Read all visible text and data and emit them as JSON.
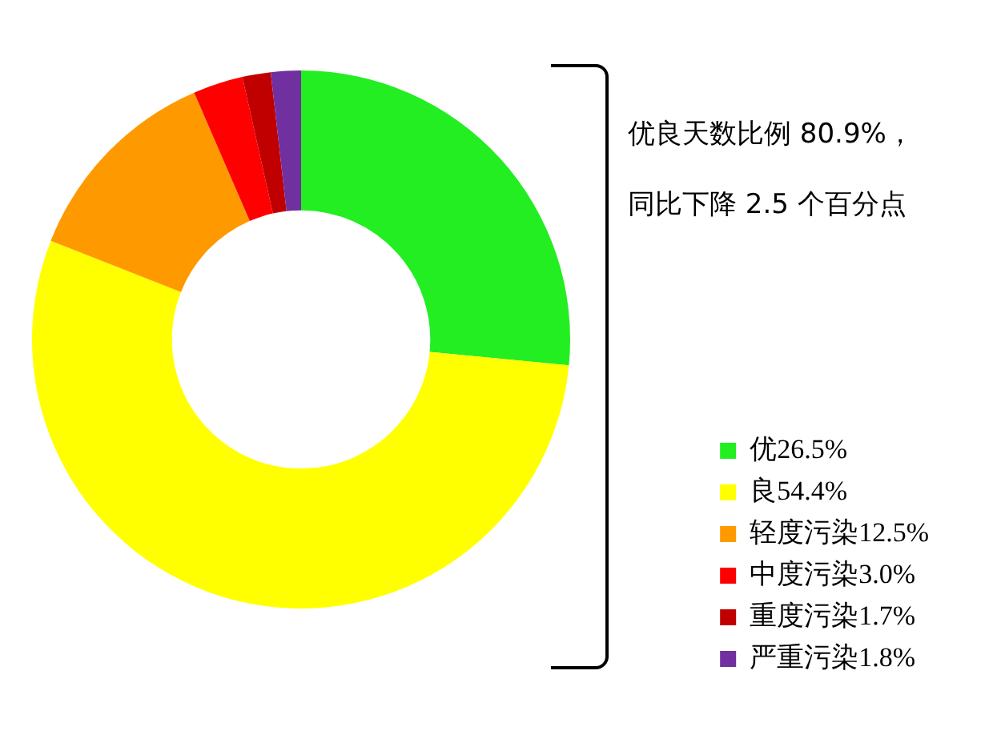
{
  "chart_data": {
    "type": "donut",
    "categories": [
      "优26.5%",
      "良54.4%",
      "轻度污染12.5%",
      "中度污染3.0%",
      "重度污染1.7%",
      "严重污染1.8%"
    ],
    "values": [
      26.5,
      54.4,
      12.5,
      3.0,
      1.7,
      1.8
    ],
    "colors": [
      "#22ee22",
      "#ffff00",
      "#ff9900",
      "#ff0000",
      "#c00000",
      "#7030a0"
    ],
    "annotations": [
      "优良天数比例 80.9%，",
      "同比下降 2.5 个百分点"
    ],
    "legend": "bottom right"
  }
}
